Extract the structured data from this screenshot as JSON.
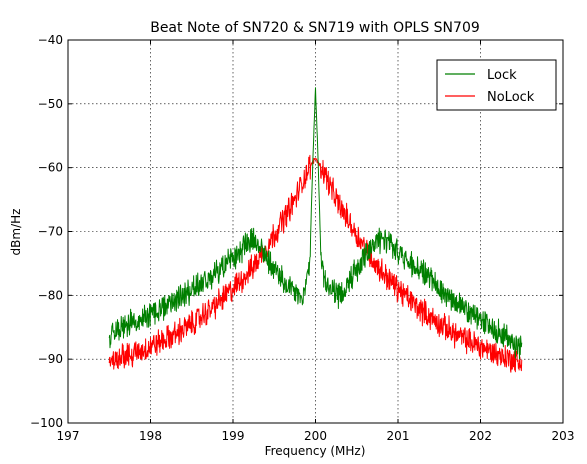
{
  "chart_data": {
    "type": "line",
    "title": "Beat Note of SN720 & SN719 with OPLS SN709",
    "xlabel": "Frequency (MHz)",
    "ylabel": "dBm/Hz",
    "xlim": [
      197,
      203
    ],
    "ylim": [
      -100,
      -40
    ],
    "xticks": [
      197,
      198,
      199,
      200,
      201,
      202,
      203
    ],
    "yticks": [
      -100,
      -90,
      -80,
      -70,
      -60,
      -50,
      -40
    ],
    "grid": true,
    "legend_position": "top-right",
    "series": [
      {
        "name": "Lock",
        "color": "#007f00",
        "x": [
          197.5,
          197.75,
          198.0,
          198.25,
          198.5,
          198.75,
          199.0,
          199.15,
          199.25,
          199.4,
          199.55,
          199.7,
          199.85,
          199.93,
          199.97,
          200.0,
          200.03,
          200.07,
          200.15,
          200.3,
          200.45,
          200.6,
          200.75,
          200.9,
          201.1,
          201.4,
          201.7,
          202.0,
          202.25,
          202.5
        ],
        "y": [
          -86,
          -84.5,
          -83,
          -81,
          -79,
          -77,
          -74.5,
          -72,
          -71.5,
          -74,
          -77,
          -79,
          -80.5,
          -75,
          -58,
          -47.5,
          -58,
          -76,
          -79,
          -80,
          -77,
          -73.5,
          -71.5,
          -72,
          -74.5,
          -77.5,
          -81,
          -84,
          -86,
          -88.5
        ]
      },
      {
        "name": "NoLock",
        "color": "#ff0000",
        "x": [
          197.5,
          197.75,
          198.0,
          198.25,
          198.5,
          198.75,
          199.0,
          199.25,
          199.5,
          199.75,
          199.9,
          200.0,
          200.1,
          200.25,
          200.5,
          200.75,
          201.0,
          201.25,
          201.5,
          201.75,
          202.0,
          202.25,
          202.5
        ],
        "y": [
          -90,
          -89.5,
          -88,
          -86.5,
          -84.5,
          -82,
          -79,
          -75.5,
          -70.5,
          -65,
          -60.5,
          -58.5,
          -60.5,
          -65,
          -70.5,
          -75.5,
          -79,
          -82,
          -84.5,
          -86.5,
          -88,
          -89.5,
          -90.5
        ]
      }
    ]
  }
}
